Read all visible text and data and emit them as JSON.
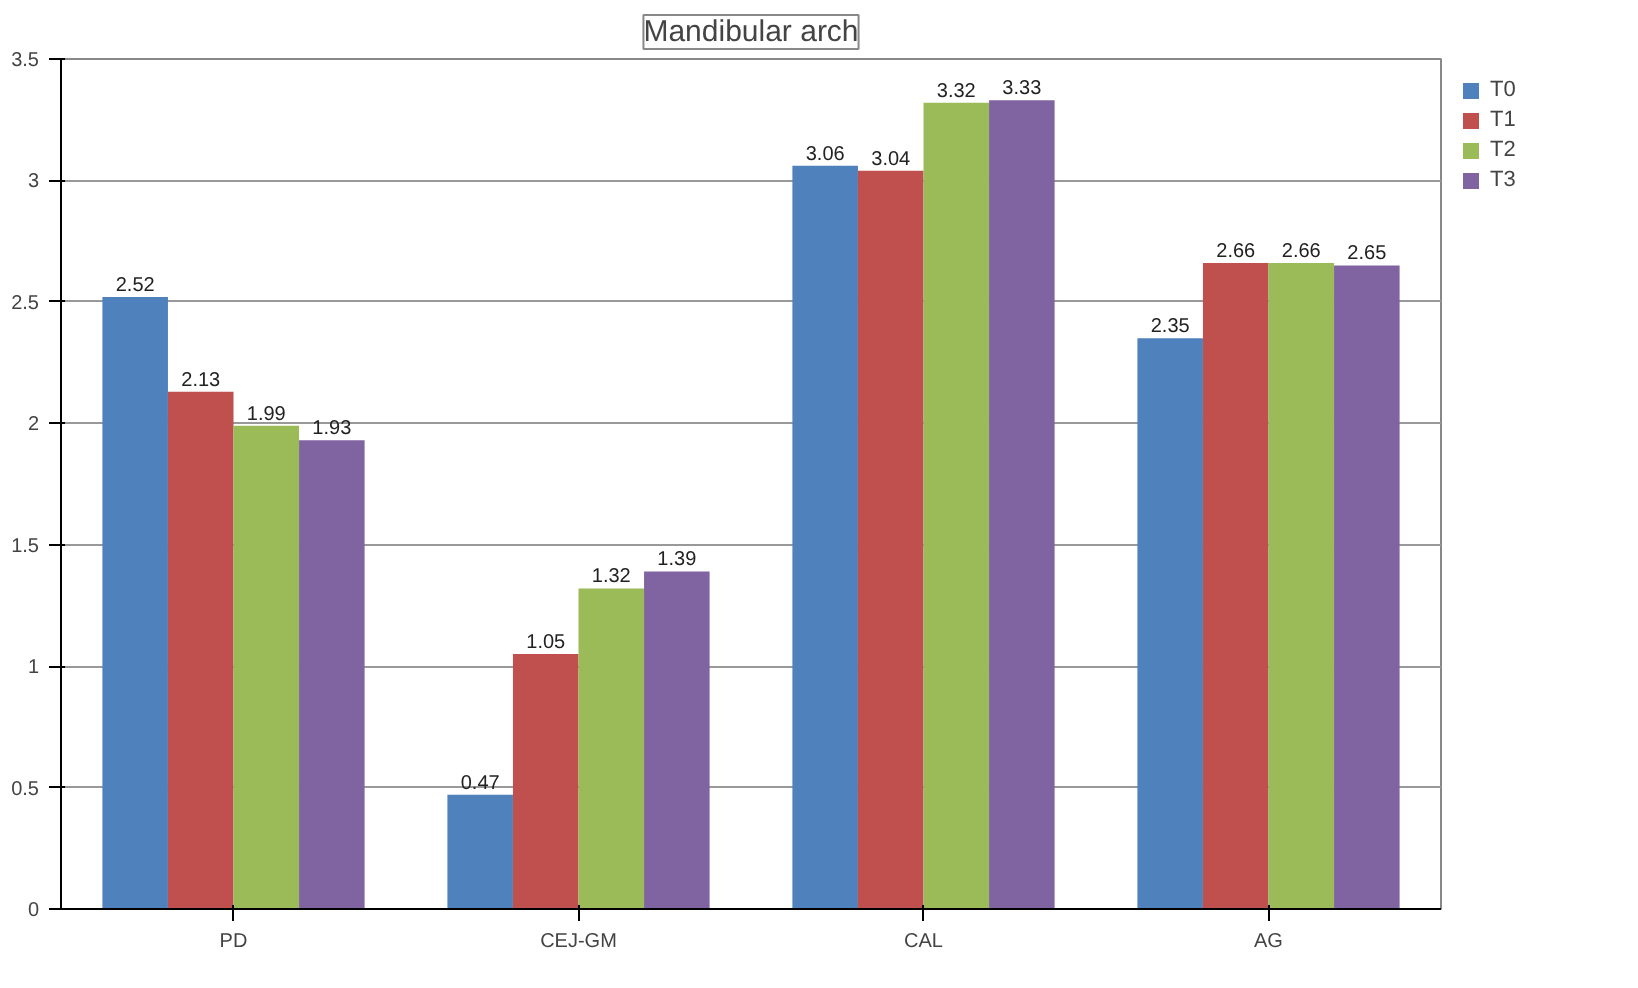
{
  "chart_data": {
    "type": "bar",
    "title": "Mandibular arch",
    "categories": [
      "PD",
      "CEJ-GM",
      "CAL",
      "AG"
    ],
    "series": [
      {
        "name": "T0",
        "color": "#4f81bd",
        "values": [
          2.52,
          0.47,
          3.06,
          2.35
        ]
      },
      {
        "name": "T1",
        "color": "#c0504d",
        "values": [
          2.13,
          1.05,
          3.04,
          2.66
        ]
      },
      {
        "name": "T2",
        "color": "#9bbb59",
        "values": [
          1.99,
          1.32,
          3.32,
          2.66
        ]
      },
      {
        "name": "T3",
        "color": "#8064a2",
        "values": [
          1.93,
          1.39,
          3.33,
          2.65
        ]
      }
    ],
    "ylim": [
      0,
      3.5
    ],
    "yticks": [
      0,
      0.5,
      1,
      1.5,
      2,
      2.5,
      3,
      3.5
    ],
    "grid": "y",
    "legend": "right",
    "data_labels": true
  }
}
